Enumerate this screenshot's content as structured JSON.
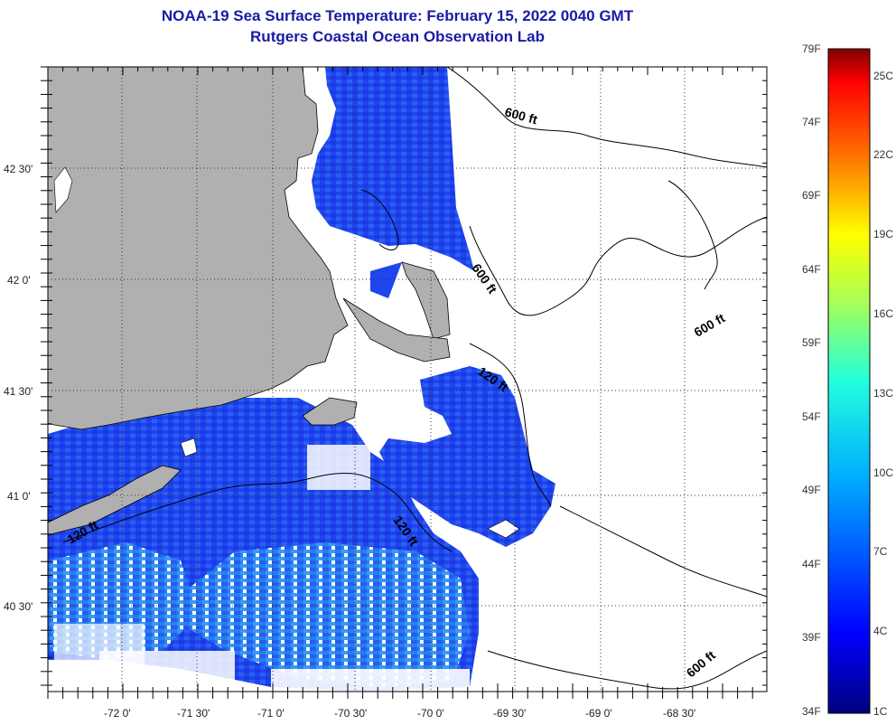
{
  "title": {
    "line1": "NOAA-19 Sea Surface Temperature:  February 15, 2022 0040 GMT",
    "line2": "Rutgers Coastal Ocean Observation Lab"
  },
  "map": {
    "lon_ticks": [
      "-72 0'",
      "-71 30'",
      "-71 0'",
      "-70 30'",
      "-70 0'",
      "-69 30'",
      "-69 0'",
      "-68 30'"
    ],
    "lat_ticks": [
      "42 30'",
      "42 0'",
      "41 30'",
      "41 0'",
      "40 30'"
    ],
    "contour_labels": [
      "600 ft",
      "600 ft",
      "600 ft",
      "600 ft",
      "120 ft",
      "120 ft",
      "120 ft"
    ],
    "colors": {
      "land": "#b0b0b0",
      "no_data": "#ffffff",
      "cold_water": "#1f3fe8",
      "mid_water": "#2a8cf0"
    }
  },
  "colorbar": {
    "fahrenheit": [
      "79F",
      "74F",
      "69F",
      "64F",
      "59F",
      "54F",
      "49F",
      "44F",
      "39F",
      "34F"
    ],
    "celsius": [
      "25C",
      "22C",
      "19C",
      "16C",
      "13C",
      "10C",
      "7C",
      "4C",
      "1C"
    ],
    "range_f": [
      34,
      79
    ],
    "range_c": [
      1,
      26
    ]
  }
}
